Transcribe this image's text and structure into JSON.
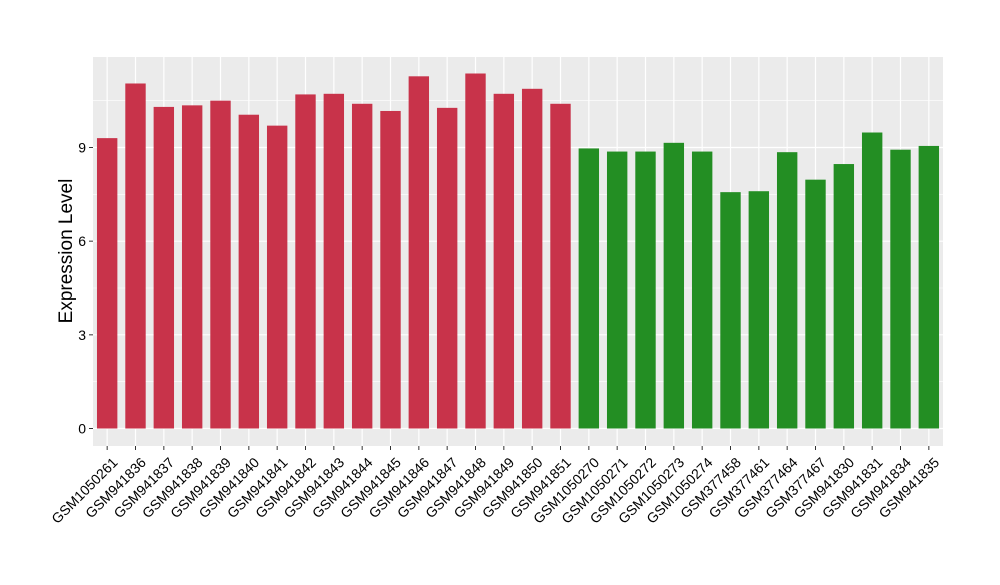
{
  "chart_data": {
    "type": "bar",
    "title": "",
    "xlabel": "",
    "ylabel": "Expression Level",
    "ylim": [
      0,
      11.9
    ],
    "yticks": [
      0,
      3,
      6,
      9
    ],
    "grid": true,
    "legend": "none",
    "colors": {
      "group1": "#c8334a",
      "group2": "#238e23",
      "panel": "#ebebeb",
      "grid": "#ffffff",
      "tick_text": "#000000"
    },
    "categories": [
      "GSM1050261",
      "GSM941836",
      "GSM941837",
      "GSM941838",
      "GSM941839",
      "GSM941840",
      "GSM941841",
      "GSM941842",
      "GSM941843",
      "GSM941844",
      "GSM941845",
      "GSM941846",
      "GSM941847",
      "GSM941848",
      "GSM941849",
      "GSM941850",
      "GSM941851",
      "GSM1050270",
      "GSM1050271",
      "GSM1050272",
      "GSM1050273",
      "GSM1050274",
      "GSM377458",
      "GSM377461",
      "GSM377464",
      "GSM377467",
      "GSM941830",
      "GSM941831",
      "GSM941834",
      "GSM941835"
    ],
    "values": [
      9.3,
      11.05,
      10.3,
      10.35,
      10.5,
      10.05,
      9.7,
      10.7,
      10.72,
      10.4,
      10.17,
      11.28,
      10.27,
      11.37,
      10.72,
      10.88,
      10.4,
      8.97,
      8.87,
      8.87,
      9.15,
      8.87,
      7.57,
      7.6,
      8.85,
      7.97,
      8.47,
      9.48,
      8.93,
      9.05
    ],
    "groups": [
      "group1",
      "group1",
      "group1",
      "group1",
      "group1",
      "group1",
      "group1",
      "group1",
      "group1",
      "group1",
      "group1",
      "group1",
      "group1",
      "group1",
      "group1",
      "group1",
      "group1",
      "group2",
      "group2",
      "group2",
      "group2",
      "group2",
      "group2",
      "group2",
      "group2",
      "group2",
      "group2",
      "group2",
      "group2",
      "group2"
    ]
  }
}
